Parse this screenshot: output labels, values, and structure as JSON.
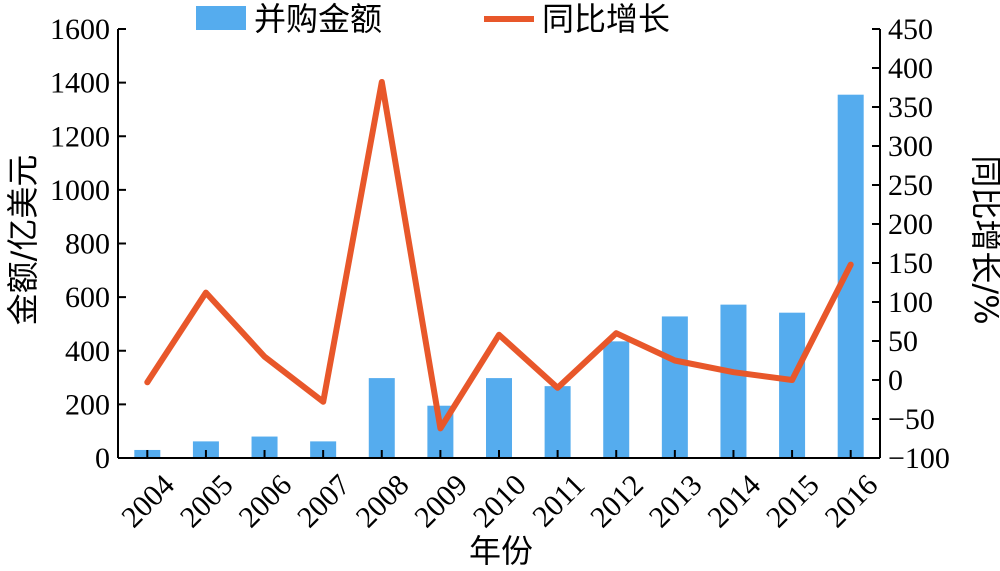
{
  "chart_data": {
    "type": "bar",
    "categories": [
      "2004",
      "2005",
      "2006",
      "2007",
      "2008",
      "2009",
      "2010",
      "2011",
      "2012",
      "2013",
      "2014",
      "2015",
      "2016"
    ],
    "series": [
      {
        "name": "并购金额",
        "type": "bar",
        "axis": "left",
        "color": "#55acee",
        "values": [
          30,
          62,
          80,
          62,
          298,
          195,
          298,
          268,
          435,
          528,
          572,
          542,
          1355
        ]
      },
      {
        "name": "同比增长",
        "type": "line",
        "axis": "right",
        "color": "#e8572a",
        "values": [
          -3,
          112,
          30,
          -28,
          382,
          -62,
          58,
          -10,
          60,
          25,
          10,
          0,
          148
        ]
      }
    ],
    "xlabel": "年份",
    "ylabel": "金额/亿美元",
    "y2label": "同比增长/%",
    "ylim": [
      0,
      1600
    ],
    "y2lim": [
      -100,
      450
    ],
    "yticks": [
      "0",
      "200",
      "400",
      "600",
      "800",
      "1000",
      "1200",
      "1400",
      "1600"
    ],
    "y2ticks": [
      "−100",
      "−50",
      "0",
      "50",
      "100",
      "150",
      "200",
      "250",
      "300",
      "350",
      "400",
      "450"
    ],
    "legend_position": "top"
  }
}
